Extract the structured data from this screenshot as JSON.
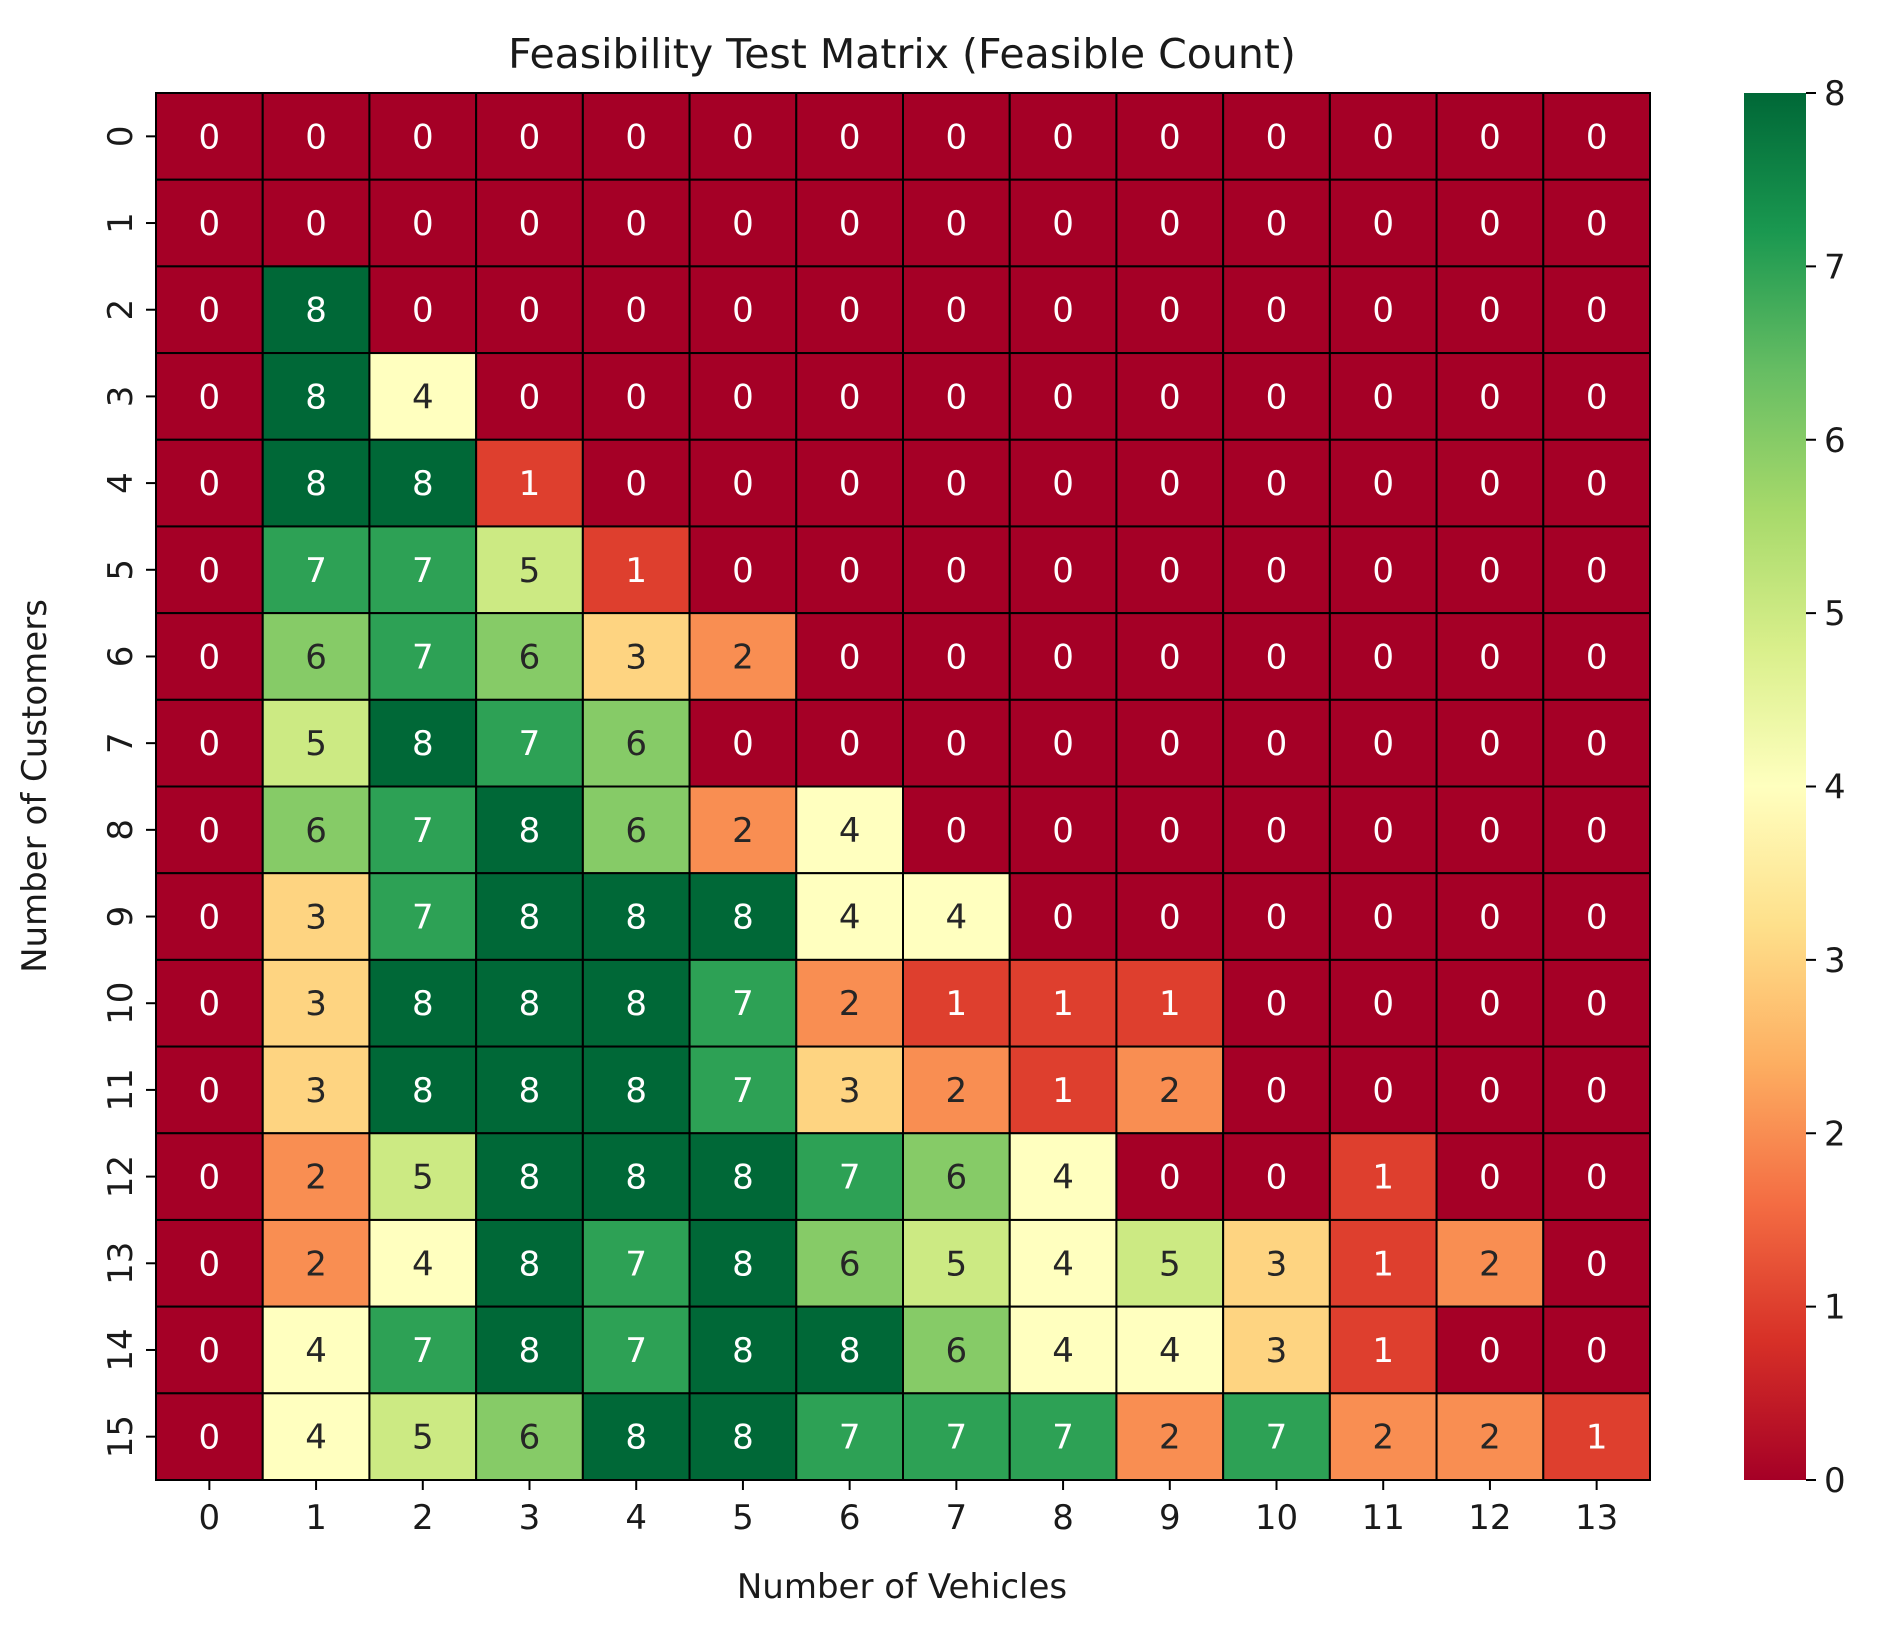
{
  "chart_data": {
    "type": "heatmap",
    "title": "Feasibility Test Matrix (Feasible Count)",
    "xlabel": "Number of Vehicles",
    "ylabel": "Number of Customers",
    "x_categories": [
      "0",
      "1",
      "2",
      "3",
      "4",
      "5",
      "6",
      "7",
      "8",
      "9",
      "10",
      "11",
      "12",
      "13"
    ],
    "y_categories": [
      "0",
      "1",
      "2",
      "3",
      "4",
      "5",
      "6",
      "7",
      "8",
      "9",
      "10",
      "11",
      "12",
      "13",
      "14",
      "15"
    ],
    "values": [
      [
        0,
        0,
        0,
        0,
        0,
        0,
        0,
        0,
        0,
        0,
        0,
        0,
        0,
        0
      ],
      [
        0,
        0,
        0,
        0,
        0,
        0,
        0,
        0,
        0,
        0,
        0,
        0,
        0,
        0
      ],
      [
        0,
        8,
        0,
        0,
        0,
        0,
        0,
        0,
        0,
        0,
        0,
        0,
        0,
        0
      ],
      [
        0,
        8,
        4,
        0,
        0,
        0,
        0,
        0,
        0,
        0,
        0,
        0,
        0,
        0
      ],
      [
        0,
        8,
        8,
        1,
        0,
        0,
        0,
        0,
        0,
        0,
        0,
        0,
        0,
        0
      ],
      [
        0,
        7,
        7,
        5,
        1,
        0,
        0,
        0,
        0,
        0,
        0,
        0,
        0,
        0
      ],
      [
        0,
        6,
        7,
        6,
        3,
        2,
        0,
        0,
        0,
        0,
        0,
        0,
        0,
        0
      ],
      [
        0,
        5,
        8,
        7,
        6,
        0,
        0,
        0,
        0,
        0,
        0,
        0,
        0,
        0
      ],
      [
        0,
        6,
        7,
        8,
        6,
        2,
        4,
        0,
        0,
        0,
        0,
        0,
        0,
        0
      ],
      [
        0,
        3,
        7,
        8,
        8,
        8,
        4,
        4,
        0,
        0,
        0,
        0,
        0,
        0
      ],
      [
        0,
        3,
        8,
        8,
        8,
        7,
        2,
        1,
        1,
        1,
        0,
        0,
        0,
        0
      ],
      [
        0,
        3,
        8,
        8,
        8,
        7,
        3,
        2,
        1,
        2,
        0,
        0,
        0,
        0
      ],
      [
        0,
        2,
        5,
        8,
        8,
        8,
        7,
        6,
        4,
        0,
        0,
        1,
        0,
        0
      ],
      [
        0,
        2,
        4,
        8,
        7,
        8,
        6,
        5,
        4,
        5,
        3,
        1,
        2,
        0
      ],
      [
        0,
        4,
        7,
        8,
        7,
        8,
        8,
        6,
        4,
        4,
        3,
        1,
        0,
        0
      ],
      [
        0,
        4,
        5,
        6,
        8,
        8,
        7,
        7,
        7,
        2,
        7,
        2,
        2,
        1
      ]
    ],
    "vmin": 0,
    "vmax": 8,
    "colormap": "RdYlGn",
    "colorbar_ticks": [
      0,
      1,
      2,
      3,
      4,
      5,
      6,
      7,
      8
    ],
    "annotated": true,
    "cell_border_color": "#000000"
  }
}
